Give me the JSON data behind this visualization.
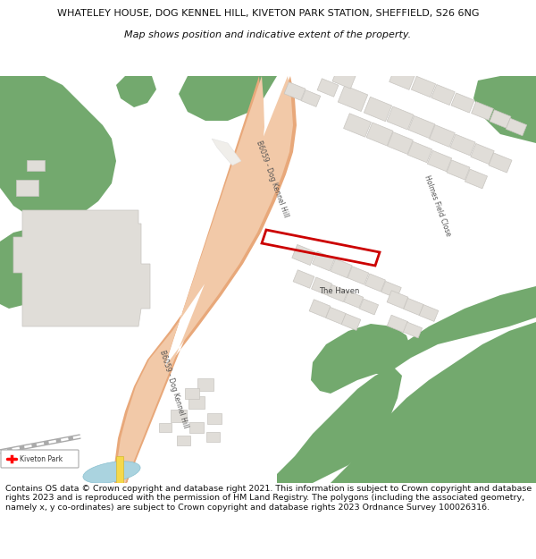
{
  "title_line1": "WHATELEY HOUSE, DOG KENNEL HILL, KIVETON PARK STATION, SHEFFIELD, S26 6NG",
  "title_line2": "Map shows position and indicative extent of the property.",
  "footer_text": "Contains OS data © Crown copyright and database right 2021. This information is subject to Crown copyright and database rights 2023 and is reproduced with the permission of HM Land Registry. The polygons (including the associated geometry, namely x, y co-ordinates) are subject to Crown copyright and database rights 2023 Ordnance Survey 100026316.",
  "bg_color": "#ffffff",
  "map_bg_color": "#f2f0eb",
  "green_color": "#73a96e",
  "road_fill": "#f2c9a8",
  "road_edge": "#e8a87a",
  "building_fill": "#e0ddd8",
  "building_edge": "#c8c5c0",
  "highlight_color": "#cc0000",
  "water_color": "#aad3df",
  "rail_color": "#999999",
  "text_dark": "#333333",
  "title_fs": 8.0,
  "subtitle_fs": 8.0,
  "footer_fs": 6.8
}
